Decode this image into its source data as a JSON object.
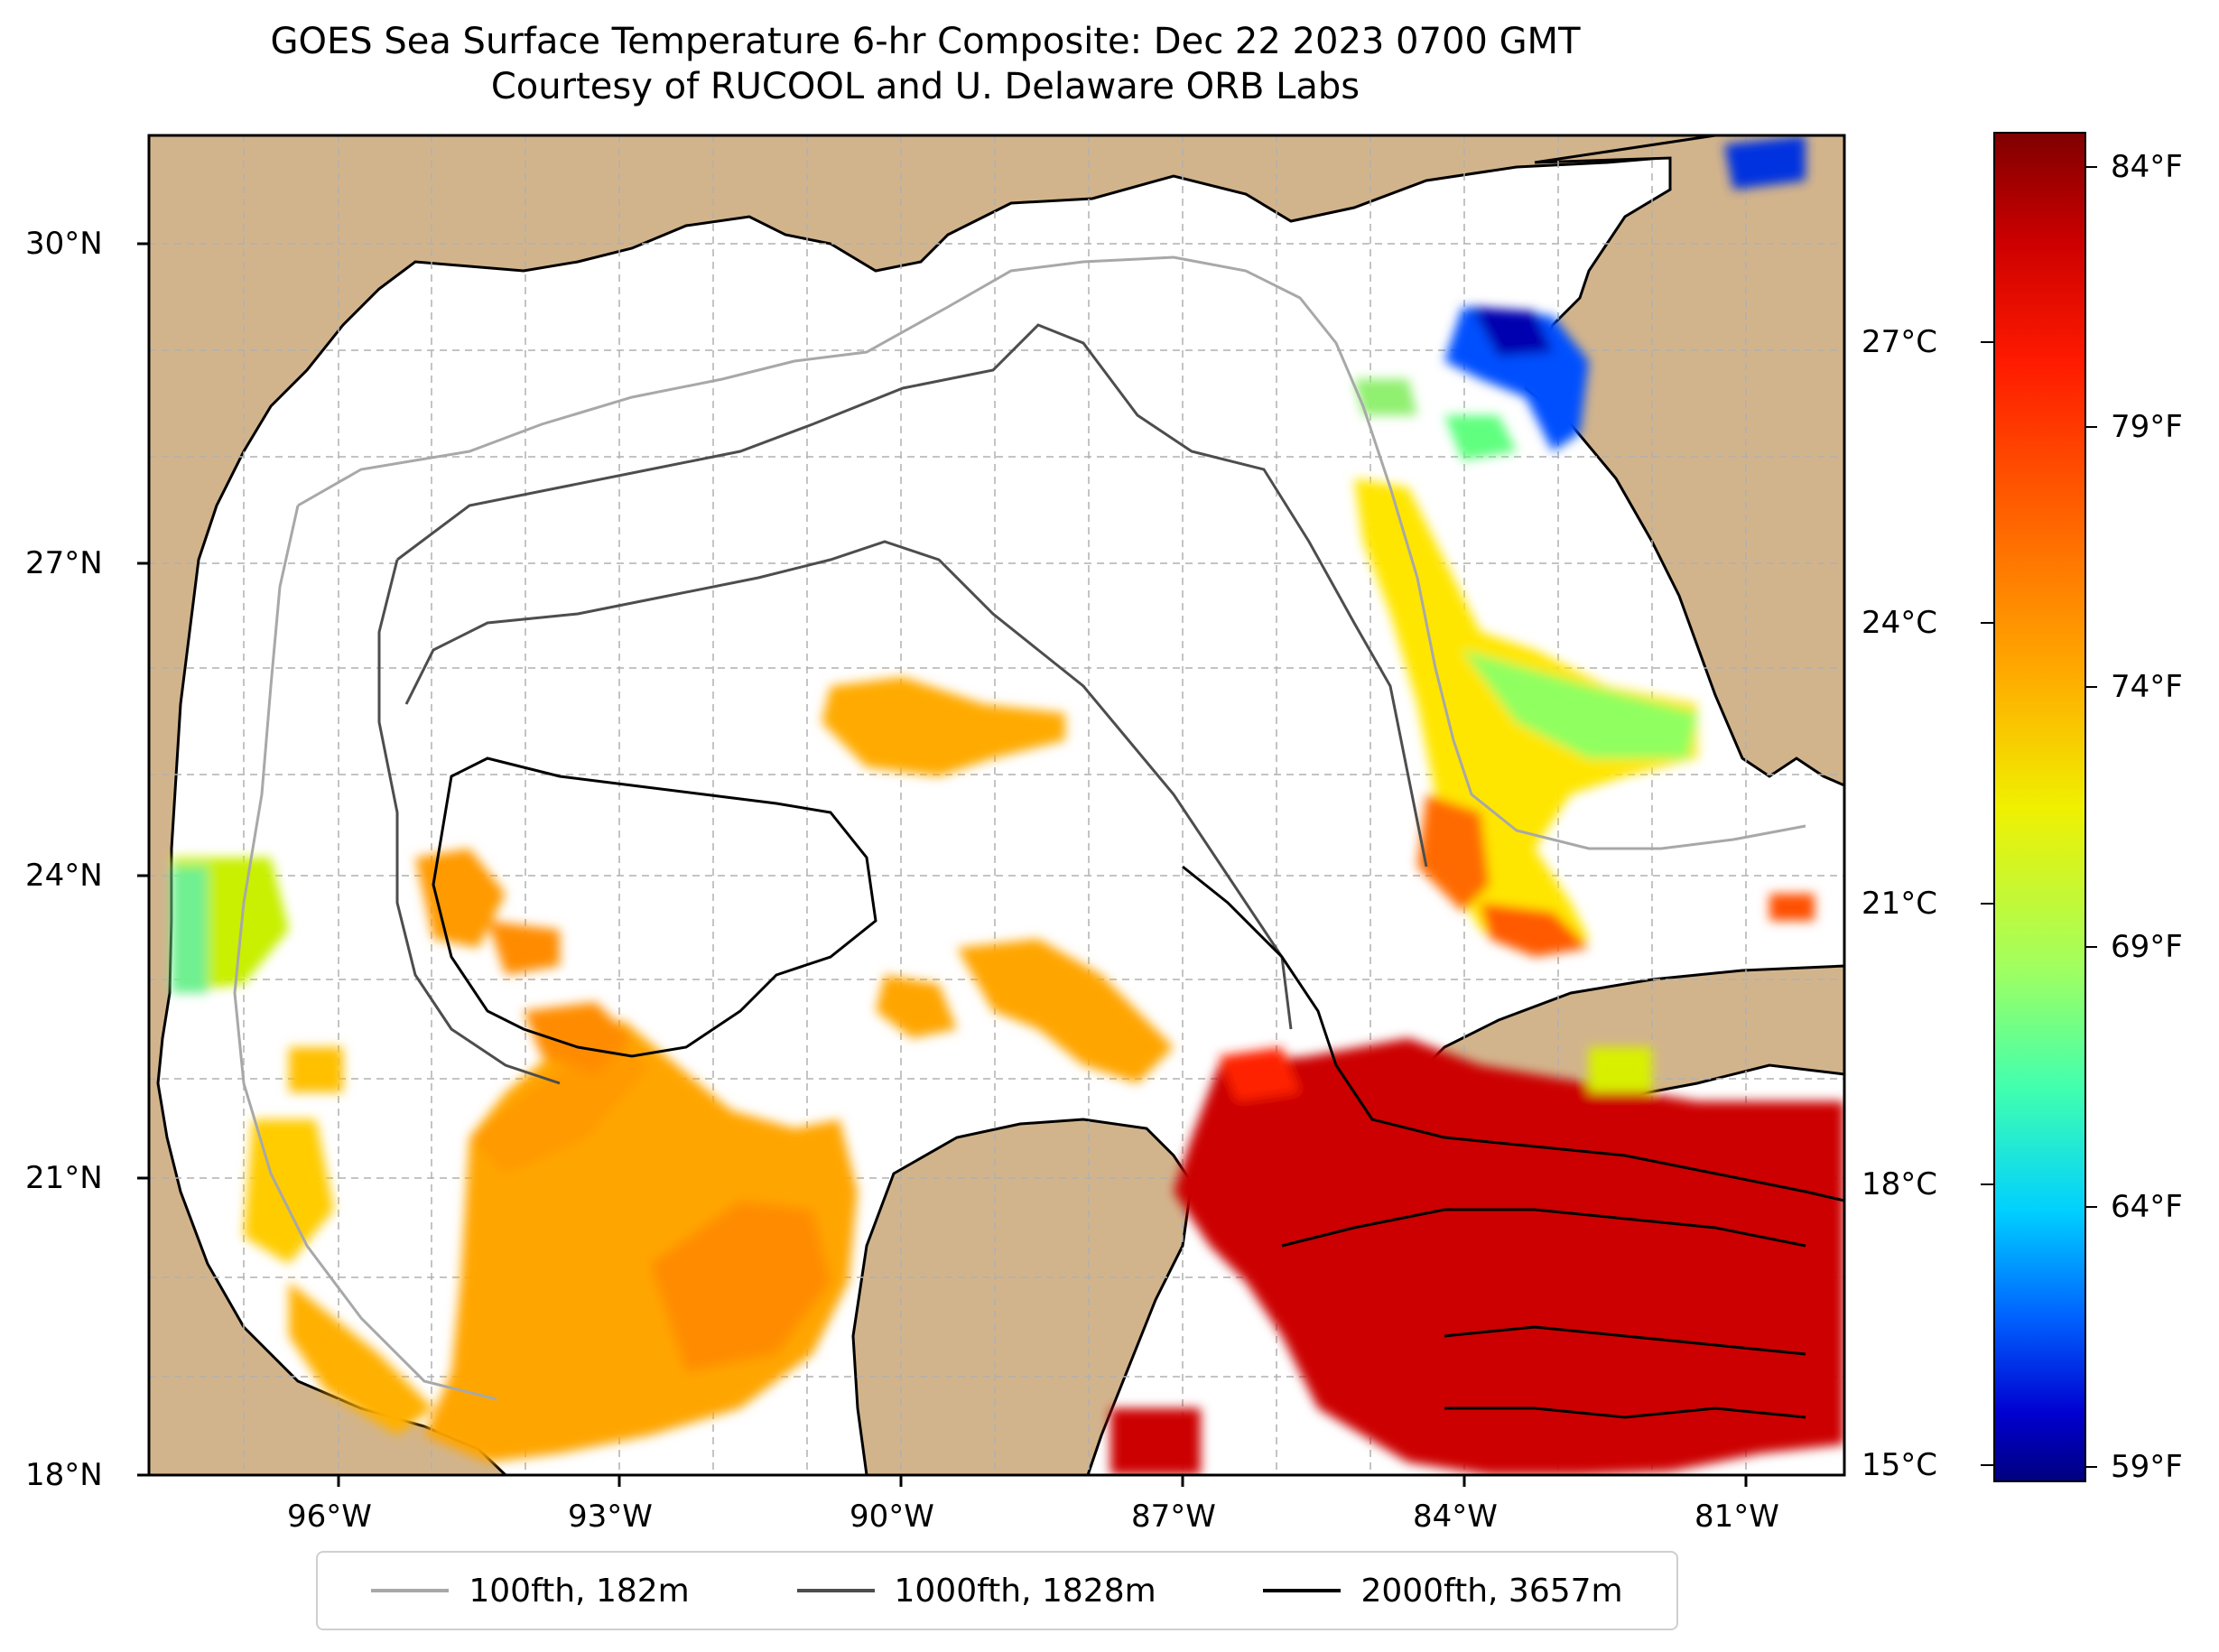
{
  "title": {
    "line1": "GOES Sea Surface Temperature 6-hr Composite: Dec 22 2023 0700 GMT",
    "line2": "Courtesy of RUCOOL and U. Delaware ORB Labs"
  },
  "map": {
    "lat_labels": [
      "30°N",
      "27°N",
      "24°N",
      "21°N",
      "18°N"
    ],
    "lon_labels": [
      "96°W",
      "93°W",
      "90°W",
      "87°W",
      "84°W",
      "81°W"
    ],
    "colors": {
      "land": "#d2b48c",
      "ocean": "#ffffff",
      "grid": "#b0b0b0"
    }
  },
  "legend": {
    "items": [
      {
        "label": "100fth, 182m",
        "color": "#a8a8a8"
      },
      {
        "label": "1000fth, 1828m",
        "color": "#4d4d4d"
      },
      {
        "label": "2000fth, 3657m",
        "color": "#000000"
      }
    ]
  },
  "colorbar": {
    "celsius_labels": [
      "27°C",
      "24°C",
      "21°C",
      "18°C",
      "15°C"
    ],
    "fahrenheit_labels": [
      "84°F",
      "79°F",
      "74°F",
      "69°F",
      "64°F",
      "59°F"
    ]
  }
}
